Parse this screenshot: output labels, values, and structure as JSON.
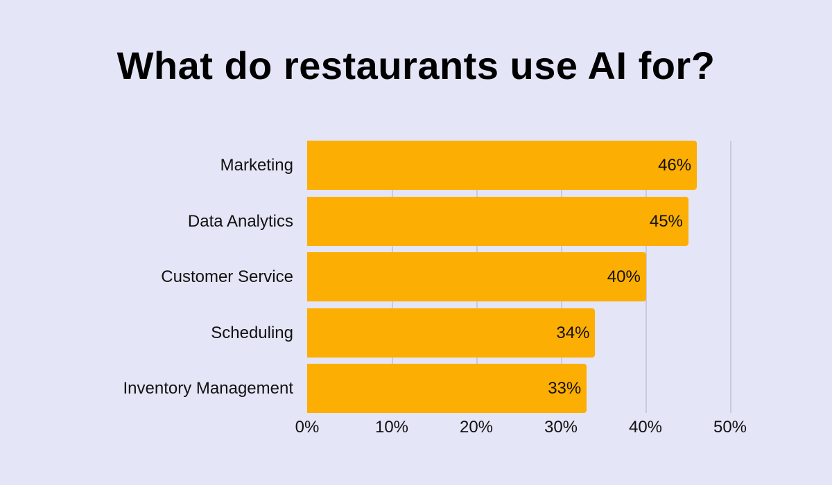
{
  "title": "What do restaurants use AI for?",
  "colors": {
    "background": "#e4e5f6",
    "bar": "#fcae03",
    "grid": "#c9cade",
    "text": "#111111"
  },
  "chart_data": {
    "type": "bar",
    "orientation": "horizontal",
    "title": "What do restaurants use AI for?",
    "categories": [
      "Marketing",
      "Data Analytics",
      "Customer Service",
      "Scheduling",
      "Inventory Management"
    ],
    "values": [
      46,
      45,
      40,
      34,
      33
    ],
    "value_labels": [
      "46%",
      "45%",
      "40%",
      "34%",
      "33%"
    ],
    "xlabel": "",
    "ylabel": "",
    "xlim": [
      0,
      50
    ],
    "x_ticks": [
      "0%",
      "10%",
      "20%",
      "30%",
      "40%",
      "50%"
    ],
    "grid": true,
    "legend": null
  }
}
